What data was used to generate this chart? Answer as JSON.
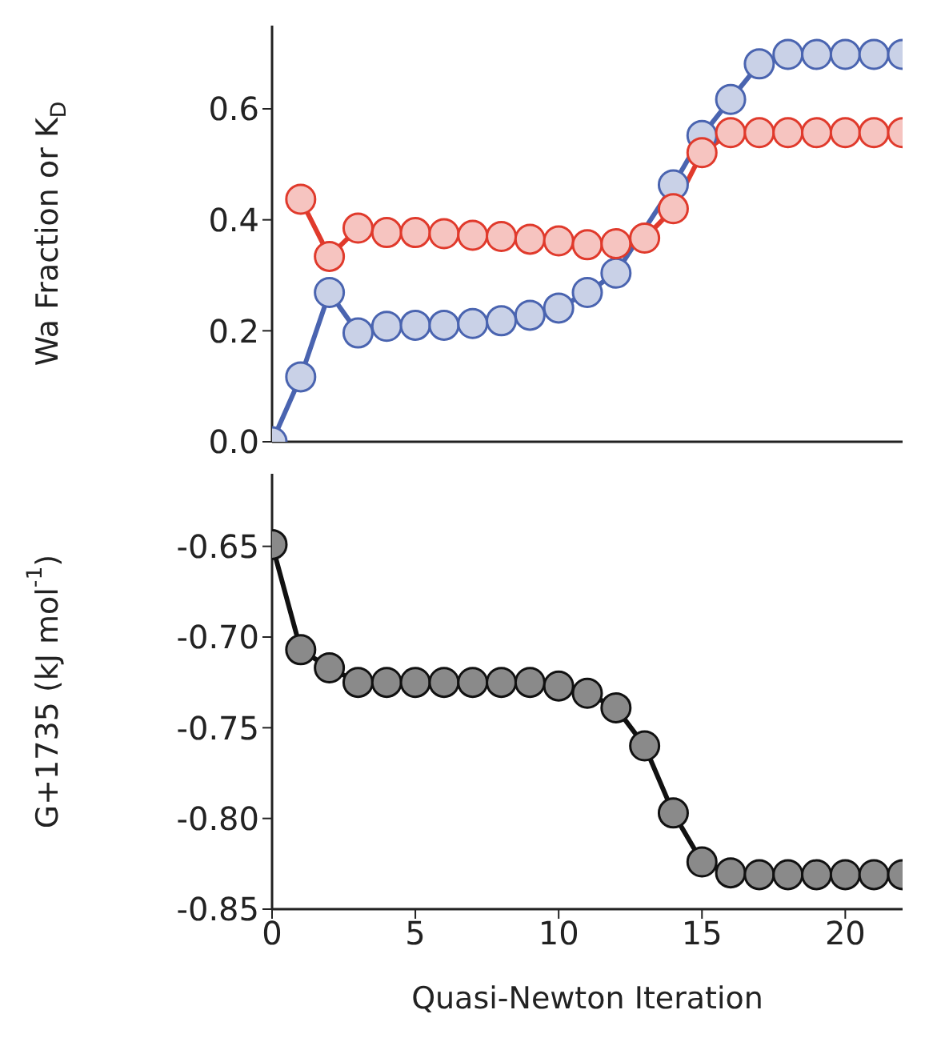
{
  "chart_data": [
    {
      "type": "line",
      "ylabel": "Wa Fraction or K$_{D}$",
      "x": [
        0,
        1,
        2,
        3,
        4,
        5,
        6,
        7,
        8,
        9,
        10,
        11,
        12,
        13,
        14,
        15,
        16,
        17,
        18,
        19,
        20,
        21,
        22
      ],
      "series": [
        {
          "color": "#4a64b0",
          "values": [
            0,
            0.117,
            0.269,
            0.196,
            0.208,
            0.21,
            0.21,
            0.213,
            0.218,
            0.228,
            0.241,
            0.269,
            0.304,
            null,
            0.463,
            0.552,
            0.617,
            0.681,
            0.698,
            0.698,
            0.698,
            0.698,
            0.698
          ]
        },
        {
          "color": "#e03a2c",
          "values": [
            null,
            0.437,
            0.334,
            0.385,
            0.377,
            0.377,
            0.375,
            0.372,
            0.37,
            0.365,
            0.362,
            0.355,
            0.357,
            0.367,
            0.42,
            0.521,
            0.557,
            0.557,
            0.557,
            0.557,
            0.557,
            0.557,
            0.557
          ]
        }
      ],
      "xlim": [
        0,
        22
      ],
      "xticks": [
        0,
        5,
        10,
        15,
        20
      ],
      "ylim": [
        0,
        0.75
      ],
      "yticks": [
        {
          "value": 0,
          "label": "0.0"
        },
        {
          "value": 0.2,
          "label": "0.2"
        },
        {
          "value": 0.4,
          "label": "0.4"
        },
        {
          "value": 0.6,
          "label": "0.6"
        }
      ],
      "tick_labels": "y",
      "marker": "circle",
      "grid": false,
      "legend": false
    },
    {
      "type": "line",
      "xlabel": "Quasi-Newton Iteration",
      "ylabel": "G+1735 (kJ mol$^{-1}$)",
      "x": [
        0,
        1,
        2,
        3,
        4,
        5,
        6,
        7,
        8,
        9,
        10,
        11,
        12,
        13,
        14,
        15,
        16,
        17,
        18,
        19,
        20,
        21,
        22
      ],
      "series": [
        {
          "color": "#111111",
          "values": [
            -0.649,
            -0.707,
            -0.717,
            -0.725,
            -0.725,
            -0.725,
            -0.725,
            -0.725,
            -0.725,
            -0.725,
            -0.727,
            -0.731,
            -0.739,
            -0.76,
            -0.797,
            -0.824,
            -0.83,
            -0.831,
            -0.831,
            -0.831,
            -0.831,
            -0.831,
            -0.831
          ]
        }
      ],
      "xlim": [
        0,
        22
      ],
      "xticks": [
        0,
        5,
        10,
        15,
        20
      ],
      "ylim": [
        -0.85,
        -0.61
      ],
      "yticks": [
        {
          "value": -0.85,
          "label": "-0.85"
        },
        {
          "value": -0.8,
          "label": "-0.80"
        },
        {
          "value": -0.75,
          "label": "-0.75"
        },
        {
          "value": -0.7,
          "label": "-0.70"
        },
        {
          "value": -0.65,
          "label": "-0.65"
        }
      ],
      "marker": "circle",
      "grid": false,
      "legend": false
    }
  ]
}
